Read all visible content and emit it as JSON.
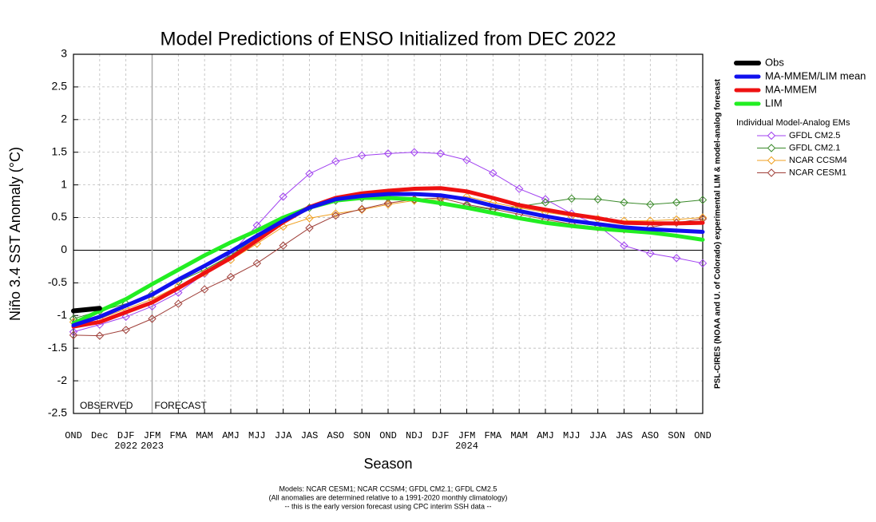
{
  "chart_data": {
    "type": "line",
    "title": "Model Predictions of ENSO Initialized from DEC 2022",
    "x_label": "Season",
    "y_label": "Niño 3.4 SST Anomaly (°C)",
    "categories": [
      "OND",
      "Dec",
      "DJF",
      "JFM",
      "FMA",
      "MAM",
      "AMJ",
      "MJJ",
      "JJA",
      "JAS",
      "ASO",
      "SON",
      "OND",
      "NDJ",
      "DJF",
      "JFM",
      "FMA",
      "MAM",
      "AMJ",
      "MJJ",
      "JJA",
      "JAS",
      "ASO",
      "SON",
      "OND"
    ],
    "x_sublabels": [
      null,
      null,
      "2022",
      "2023",
      null,
      null,
      null,
      null,
      null,
      null,
      null,
      null,
      null,
      null,
      null,
      "2024",
      null,
      null,
      null,
      null,
      null,
      null,
      null,
      null,
      null
    ],
    "ylim": [
      -2.5,
      3
    ],
    "yticks": [
      -2.5,
      -2,
      -1.5,
      -1,
      -0.5,
      0,
      0.5,
      1,
      1.5,
      2,
      2.5,
      3
    ],
    "grid": true,
    "zero_line": true,
    "forecast_start": "JFM",
    "annotations": [
      "OBSERVED",
      "FORECAST"
    ],
    "side_note": "PSL-CIRES (NOAA and U. of Colorado) experimental LIM & model-analog forecast",
    "legend_subtitle": "Individual Model-Analog EMs",
    "footer": [
      "Models: NCAR CESM1; NCAR CCSM4; GFDL CM2.1; GFDL CM2.5",
      "(All anomalies are determined relative to a 1991-2020 monthly climatology)",
      "-- this is the early version forecast using CPC interim SSH data --"
    ],
    "series": [
      {
        "name": "GFDL CM2.5",
        "color": "#a040f0",
        "marker": "diamond",
        "width": 1,
        "values": [
          -1.25,
          -1.14,
          -1.02,
          -0.86,
          -0.65,
          -0.36,
          -0.05,
          0.38,
          0.82,
          1.17,
          1.36,
          1.45,
          1.48,
          1.5,
          1.48,
          1.38,
          1.18,
          0.94,
          0.78,
          0.56,
          0.38,
          0.07,
          -0.05,
          -0.12,
          -0.2
        ]
      },
      {
        "name": "GFDL CM2.1",
        "color": "#3a8a2a",
        "marker": "diamond",
        "width": 1,
        "values": [
          -1.05,
          -0.93,
          -0.82,
          -0.67,
          -0.48,
          -0.3,
          -0.08,
          0.2,
          0.45,
          0.65,
          0.76,
          0.8,
          0.8,
          0.77,
          0.73,
          0.68,
          0.62,
          0.67,
          0.73,
          0.79,
          0.78,
          0.73,
          0.7,
          0.73,
          0.77
        ]
      },
      {
        "name": "NCAR CCSM4",
        "color": "#f0a020",
        "marker": "diamond",
        "width": 1,
        "values": [
          -1.1,
          -1.05,
          -0.9,
          -0.75,
          -0.55,
          -0.35,
          -0.15,
          0.1,
          0.36,
          0.49,
          0.56,
          0.62,
          0.7,
          0.76,
          0.78,
          0.82,
          0.73,
          0.65,
          0.58,
          0.52,
          0.48,
          0.45,
          0.45,
          0.47,
          0.5
        ]
      },
      {
        "name": "NCAR CESM1",
        "color": "#a0403a",
        "marker": "diamond",
        "width": 1,
        "values": [
          -1.3,
          -1.31,
          -1.22,
          -1.05,
          -0.82,
          -0.6,
          -0.41,
          -0.2,
          0.07,
          0.34,
          0.53,
          0.63,
          0.72,
          0.78,
          0.8,
          0.7,
          0.63,
          0.55,
          0.47,
          0.4,
          0.35,
          0.32,
          0.35,
          0.42,
          0.48
        ]
      },
      {
        "name": "LIM",
        "color": "#22ee22",
        "width": 5,
        "values": [
          -1.12,
          -0.93,
          -0.75,
          -0.52,
          -0.3,
          -0.08,
          0.12,
          0.3,
          0.5,
          0.65,
          0.76,
          0.8,
          0.8,
          0.78,
          0.72,
          0.65,
          0.57,
          0.49,
          0.42,
          0.37,
          0.33,
          0.3,
          0.27,
          0.22,
          0.16
        ]
      },
      {
        "name": "MA-MMEM",
        "color": "#ee1111",
        "width": 5,
        "values": [
          -1.17,
          -1.1,
          -0.95,
          -0.8,
          -0.58,
          -0.35,
          -0.12,
          0.15,
          0.43,
          0.66,
          0.8,
          0.87,
          0.91,
          0.94,
          0.95,
          0.9,
          0.8,
          0.69,
          0.62,
          0.55,
          0.49,
          0.42,
          0.41,
          0.41,
          0.42
        ]
      },
      {
        "name": "MA-MMEM/LIM mean",
        "color": "#1111ee",
        "width": 5,
        "values": [
          -1.15,
          -1.02,
          -0.85,
          -0.68,
          -0.45,
          -0.24,
          -0.02,
          0.22,
          0.45,
          0.65,
          0.78,
          0.83,
          0.86,
          0.86,
          0.84,
          0.78,
          0.68,
          0.6,
          0.52,
          0.45,
          0.4,
          0.35,
          0.32,
          0.3,
          0.28
        ]
      },
      {
        "name": "Obs",
        "color": "#000000",
        "width": 6,
        "values": [
          -0.93,
          -0.89,
          null,
          null,
          null,
          null,
          null,
          null,
          null,
          null,
          null,
          null,
          null,
          null,
          null,
          null,
          null,
          null,
          null,
          null,
          null,
          null,
          null,
          null,
          null
        ]
      }
    ]
  }
}
